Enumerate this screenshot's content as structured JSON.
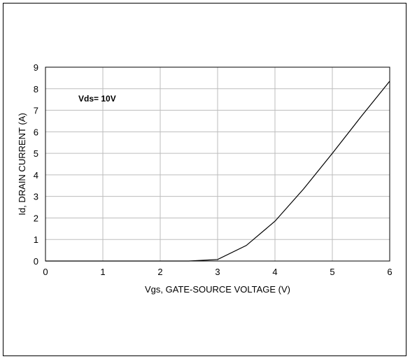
{
  "chart_data": {
    "type": "line",
    "title": "",
    "xlabel": "Vgs, GATE-SOURCE VOLTAGE (V)",
    "ylabel": "Id, DRAIN CURRENT  (A)",
    "xlim": [
      0,
      6
    ],
    "ylim": [
      0,
      9
    ],
    "xticks": [
      "0",
      "1",
      "2",
      "3",
      "4",
      "5",
      "6"
    ],
    "yticks": [
      "0",
      "1",
      "2",
      "3",
      "4",
      "5",
      "6",
      "7",
      "8",
      "9"
    ],
    "grid": true,
    "annotation": "Vds= 10V",
    "series": [
      {
        "x": [
          0,
          0.5,
          1,
          1.5,
          2,
          2.5,
          3,
          3.5,
          4,
          4.5,
          5,
          5.5,
          6
        ],
        "values": [
          0,
          0,
          0,
          0,
          0,
          0,
          0.07,
          0.72,
          1.85,
          3.35,
          5.0,
          6.7,
          8.35
        ]
      }
    ]
  }
}
